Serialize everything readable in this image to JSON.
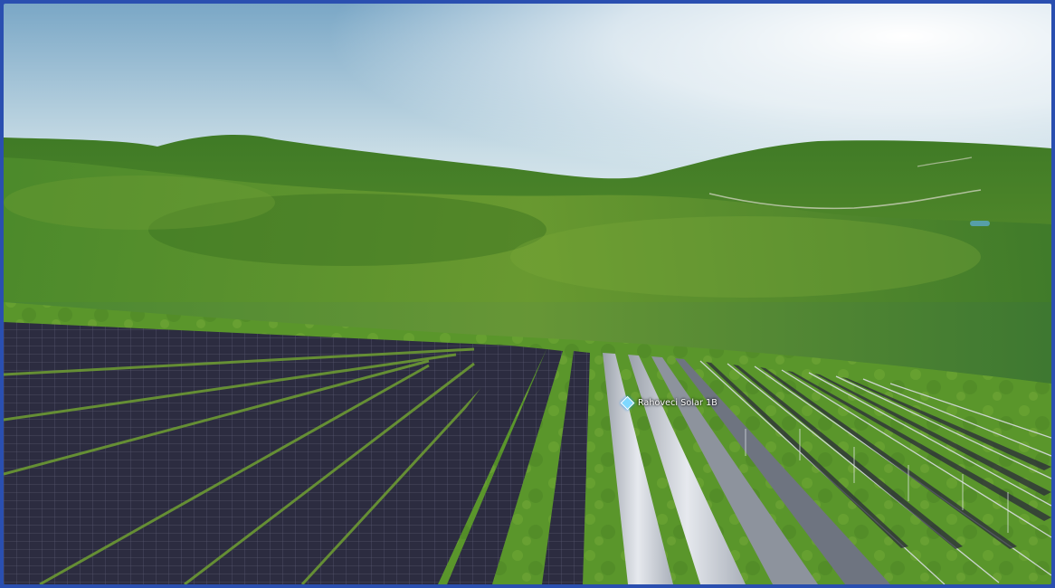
{
  "scene": {
    "poi_label": "Rahoveci Solar 1B",
    "poi_marker_icon": "diamond-marker-icon",
    "colors": {
      "frame": "#2a4fb0",
      "sky_top": "#6fa3c8",
      "sky_glow": "#ffffff",
      "hill": "#4f8a2a",
      "grass": "#5f9e2a",
      "panel_dark": "#2a2a3a",
      "panel_bright": "#cfd3da",
      "marker": "#7fd8ff"
    }
  }
}
